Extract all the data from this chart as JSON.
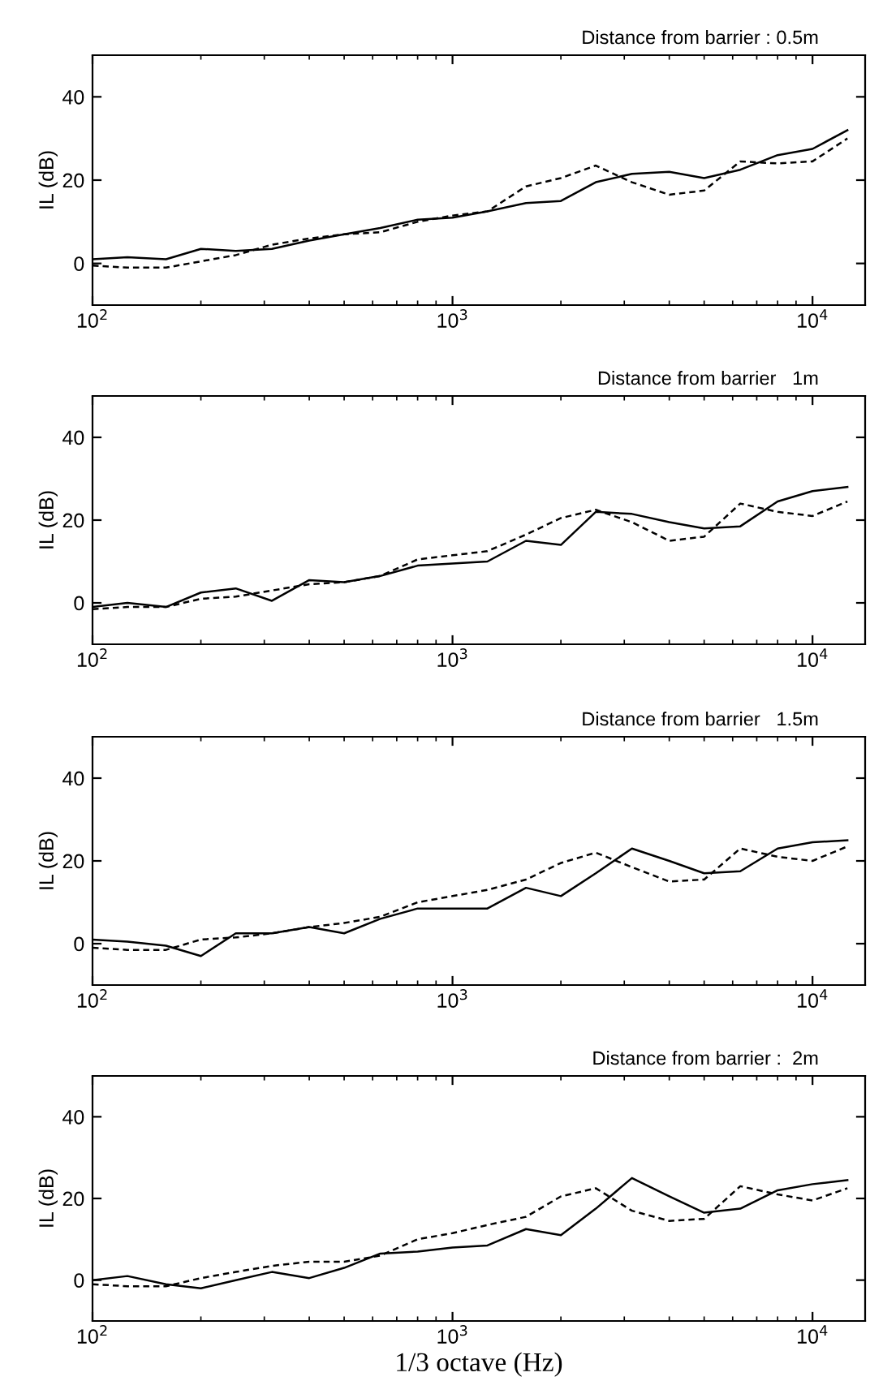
{
  "chart_data": [
    {
      "type": "line",
      "title": "Distance from barrier : 0.5m",
      "ylabel": "IL (dB)",
      "log": "x",
      "xlim": [
        100,
        14000
      ],
      "ylim": [
        -10,
        50
      ],
      "xticks": [
        {
          "value": 100,
          "label": "10$^{2}$"
        },
        {
          "value": 1000,
          "label": "10$^{3}$"
        },
        {
          "value": 10000,
          "label": "10$^{4}$"
        }
      ],
      "yticks": [
        0,
        20,
        40
      ],
      "grid": false,
      "marker": "none",
      "x": [
        100,
        125,
        160,
        200,
        250,
        315,
        400,
        500,
        630,
        800,
        1000,
        1250,
        1600,
        2000,
        2500,
        3150,
        4000,
        5000,
        6300,
        8000,
        10000,
        12500
      ],
      "series": [
        {
          "color": "#000000",
          "line_style": "solid",
          "values": [
            1,
            1.5,
            1,
            3.5,
            3,
            3.5,
            5.5,
            7,
            8.5,
            10.5,
            11,
            12.5,
            14.5,
            15,
            19.5,
            21.5,
            22,
            20.5,
            22.5,
            26,
            27.5,
            32
          ]
        },
        {
          "color": "#000000",
          "line_style": "dashed",
          "values": [
            -0.5,
            -1,
            -1,
            0.5,
            2,
            4.5,
            6,
            7,
            7.5,
            10,
            11.5,
            12.5,
            18.5,
            20.5,
            23.5,
            19.5,
            16.5,
            17.5,
            24.5,
            24,
            24.5,
            30
          ]
        }
      ]
    },
    {
      "type": "line",
      "title": "Distance from barrier   1m",
      "ylabel": "IL (dB)",
      "log": "x",
      "xlim": [
        100,
        14000
      ],
      "ylim": [
        -10,
        50
      ],
      "xticks": [
        {
          "value": 100,
          "label": "10$^{2}$"
        },
        {
          "value": 1000,
          "label": "10$^{3}$"
        },
        {
          "value": 10000,
          "label": "10$^{4}$"
        }
      ],
      "yticks": [
        0,
        20,
        40
      ],
      "grid": false,
      "marker": "none",
      "x": [
        100,
        125,
        160,
        200,
        250,
        315,
        400,
        500,
        630,
        800,
        1000,
        1250,
        1600,
        2000,
        2500,
        3150,
        4000,
        5000,
        6300,
        8000,
        10000,
        12500
      ],
      "series": [
        {
          "color": "#000000",
          "line_style": "solid",
          "values": [
            -1,
            0,
            -1,
            2.5,
            3.5,
            0.5,
            5.5,
            5,
            6.5,
            9,
            9.5,
            10,
            15,
            14,
            22,
            21.5,
            19.5,
            18,
            18.5,
            24.5,
            27,
            28
          ]
        },
        {
          "color": "#000000",
          "line_style": "dashed",
          "values": [
            -1.5,
            -1,
            -1,
            1,
            1.5,
            3,
            4.5,
            5,
            6.5,
            10.5,
            11.5,
            12.5,
            16.5,
            20.5,
            22.5,
            19.5,
            15,
            16,
            24,
            22,
            21,
            24.5
          ]
        }
      ]
    },
    {
      "type": "line",
      "title": "Distance from barrier   1.5m",
      "ylabel": "IL (dB)",
      "log": "x",
      "xlim": [
        100,
        14000
      ],
      "ylim": [
        -10,
        50
      ],
      "xticks": [
        {
          "value": 100,
          "label": "10$^{2}$"
        },
        {
          "value": 1000,
          "label": "10$^{3}$"
        },
        {
          "value": 10000,
          "label": "10$^{4}$"
        }
      ],
      "yticks": [
        0,
        20,
        40
      ],
      "grid": false,
      "marker": "none",
      "x": [
        100,
        125,
        160,
        200,
        250,
        315,
        400,
        500,
        630,
        800,
        1000,
        1250,
        1600,
        2000,
        2500,
        3150,
        4000,
        5000,
        6300,
        8000,
        10000,
        12500
      ],
      "series": [
        {
          "color": "#000000",
          "line_style": "solid",
          "values": [
            1,
            0.5,
            -0.5,
            -3,
            2.5,
            2.5,
            4,
            2.5,
            6,
            8.5,
            8.5,
            8.5,
            13.5,
            11.5,
            17,
            23,
            20,
            17,
            17.5,
            23,
            24.5,
            25
          ]
        },
        {
          "color": "#000000",
          "line_style": "dashed",
          "values": [
            -1,
            -1.5,
            -1.5,
            1,
            1.5,
            2.5,
            4,
            5,
            6.5,
            10,
            11.5,
            13,
            15.5,
            19.5,
            22,
            18.5,
            15,
            15.5,
            23,
            21,
            20,
            23.5
          ]
        }
      ]
    },
    {
      "type": "line",
      "title": "Distance from barrier :  2m",
      "ylabel": "IL (dB)",
      "xlabel": "1/3 octave (Hz)",
      "log": "x",
      "xlim": [
        100,
        14000
      ],
      "ylim": [
        -10,
        50
      ],
      "xticks": [
        {
          "value": 100,
          "label": "10$^{2}$"
        },
        {
          "value": 1000,
          "label": "10$^{3}$"
        },
        {
          "value": 10000,
          "label": "10$^{4}$"
        }
      ],
      "yticks": [
        0,
        20,
        40
      ],
      "grid": false,
      "marker": "none",
      "x": [
        100,
        125,
        160,
        200,
        250,
        315,
        400,
        500,
        630,
        800,
        1000,
        1250,
        1600,
        2000,
        2500,
        3150,
        4000,
        5000,
        6300,
        8000,
        10000,
        12500
      ],
      "series": [
        {
          "color": "#000000",
          "line_style": "solid",
          "values": [
            0,
            1,
            -1,
            -2,
            0,
            2,
            0.5,
            3,
            6.5,
            7,
            8,
            8.5,
            12.5,
            11,
            17.5,
            25,
            20.5,
            16.5,
            17.5,
            22,
            23.5,
            24.5
          ]
        },
        {
          "color": "#000000",
          "line_style": "dashed",
          "values": [
            -1,
            -1.5,
            -1.5,
            0.5,
            2,
            3.5,
            4.5,
            4.5,
            6,
            10,
            11.5,
            13.5,
            15.5,
            20.5,
            22.5,
            17,
            14.5,
            15,
            23,
            21,
            19.5,
            22.5
          ]
        }
      ]
    }
  ]
}
